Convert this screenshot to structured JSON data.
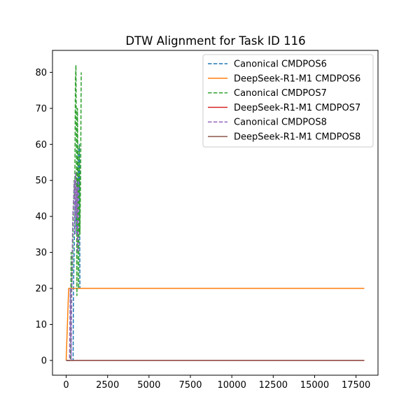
{
  "chart_data": {
    "type": "line",
    "title": "DTW Alignment for Task ID 116",
    "xlabel": "",
    "ylabel": "",
    "xlim": [
      -825,
      18825
    ],
    "ylim": [
      -4.1,
      86.1
    ],
    "xticks": [
      0,
      2500,
      5000,
      7500,
      10000,
      12500,
      15000,
      17500
    ],
    "yticks": [
      0,
      10,
      20,
      30,
      40,
      50,
      60,
      70,
      80
    ],
    "grid": false,
    "legend_position": "upper right",
    "series": [
      {
        "name": "Canonical CMDPOS6",
        "color": "#1f77b4",
        "dash": "dashed",
        "x": [
          0,
          250,
          420,
          440,
          480,
          520,
          560,
          600,
          640,
          680,
          720,
          760,
          800,
          830
        ],
        "y": [
          0,
          0,
          0,
          20,
          30,
          40,
          45,
          40,
          35,
          50,
          40,
          58,
          60,
          20
        ]
      },
      {
        "name": "DeepSeek-R1-M1 CMDPOS6",
        "color": "#ff7f0e",
        "dash": "solid",
        "x": [
          0,
          150,
          18000
        ],
        "y": [
          0,
          20,
          20
        ]
      },
      {
        "name": "Canonical CMDPOS7",
        "color": "#2ca02c",
        "dash": "dashed",
        "x": [
          0,
          260,
          300,
          330,
          380,
          430,
          480,
          520,
          560,
          590,
          620,
          650,
          680,
          720,
          750,
          790,
          830,
          870,
          910
        ],
        "y": [
          0,
          0,
          30,
          20,
          25,
          40,
          50,
          45,
          78,
          82,
          60,
          18,
          70,
          45,
          20,
          60,
          35,
          50,
          80
        ]
      },
      {
        "name": "DeepSeek-R1-M1 CMDPOS7",
        "color": "#d62728",
        "dash": "solid",
        "x": [
          0,
          18000
        ],
        "y": [
          0,
          0
        ]
      },
      {
        "name": "Canonical CMDPOS8",
        "color": "#9467bd",
        "dash": "dashed",
        "x": [
          0,
          200,
          250,
          300,
          350,
          400,
          450,
          500,
          540,
          580,
          620,
          660,
          700,
          740
        ],
        "y": [
          0,
          0,
          20,
          0,
          25,
          40,
          45,
          50,
          35,
          52,
          40,
          48,
          30,
          50
        ]
      },
      {
        "name": "DeepSeek-R1-M1 CMDPOS8",
        "color": "#8c564b",
        "dash": "solid",
        "x": [
          0,
          18000
        ],
        "y": [
          0,
          0
        ]
      }
    ]
  }
}
